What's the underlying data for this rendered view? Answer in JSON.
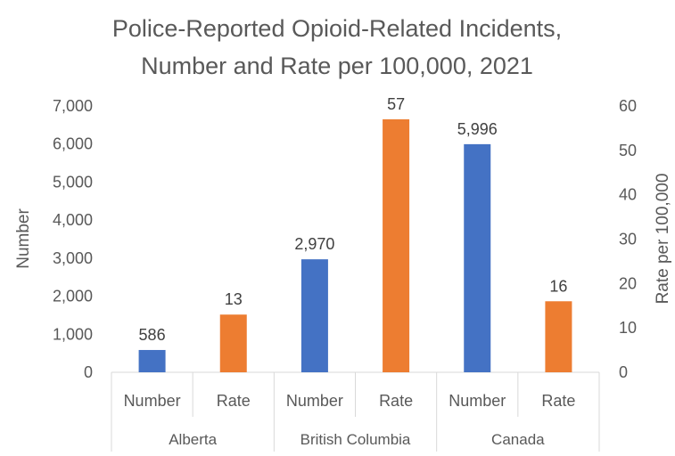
{
  "chart_data": {
    "type": "bar",
    "title_lines": [
      "Police-Reported Opioid-Related Incidents,",
      "Number and Rate per 100,000, 2021"
    ],
    "ylabel": "Number",
    "y2label": "Rate per 100,000",
    "ylim": [
      0,
      7000
    ],
    "y2lim": [
      0,
      60
    ],
    "y_ticks": [
      "0",
      "1,000",
      "2,000",
      "3,000",
      "4,000",
      "5,000",
      "6,000",
      "7,000"
    ],
    "y2_ticks": [
      "0",
      "10",
      "20",
      "30",
      "40",
      "50",
      "60"
    ],
    "grid": false,
    "legend": "none",
    "colors": {
      "Number": "#4472C4",
      "Rate": "#ED7D31"
    },
    "groups": [
      {
        "name": "Alberta",
        "bars": [
          {
            "label": "Number",
            "value": 586,
            "axis": "left",
            "display": "586"
          },
          {
            "label": "Rate",
            "value": 13,
            "axis": "right",
            "display": "13"
          }
        ]
      },
      {
        "name": "British Columbia",
        "bars": [
          {
            "label": "Number",
            "value": 2970,
            "axis": "left",
            "display": "2,970"
          },
          {
            "label": "Rate",
            "value": 57,
            "axis": "right",
            "display": "57"
          }
        ]
      },
      {
        "name": "Canada",
        "bars": [
          {
            "label": "Number",
            "value": 5996,
            "axis": "left",
            "display": "5,996"
          },
          {
            "label": "Rate",
            "value": 16,
            "axis": "right",
            "display": "16"
          }
        ]
      }
    ]
  }
}
